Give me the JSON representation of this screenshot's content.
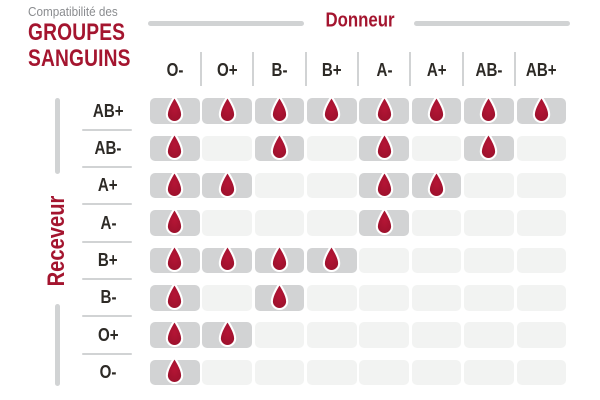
{
  "title": {
    "pre": "Compatibilité des",
    "line1": "GROUPES",
    "line2": "SANGUINS"
  },
  "axis": {
    "donor_label": "Donneur",
    "receiver_label": "Receveur"
  },
  "icons": {
    "compatible_marker": "blood-drop-icon"
  },
  "colors": {
    "brand_red": "#a4152f",
    "drop_red_center": "#b51535",
    "drop_red_edge": "#98102b",
    "subtitle_gray": "#8a8c8f",
    "label_dark": "#2d2a26",
    "line_gray": "#d1d3d4",
    "cell_compatible_bg": "#d2d3d4",
    "cell_incompatible_bg": "#f2f3f2"
  },
  "chart_data": {
    "type": "heatmap",
    "title": "Compatibilité des groupes sanguins",
    "xlabel": "Donneur",
    "ylabel": "Receveur",
    "donors": [
      "O-",
      "O+",
      "B-",
      "B+",
      "A-",
      "A+",
      "AB-",
      "AB+"
    ],
    "receivers": [
      "AB+",
      "AB-",
      "A+",
      "A-",
      "B+",
      "B-",
      "O+",
      "O-"
    ],
    "marker_meaning": "blood drop shown = donor compatible with receiver",
    "matrix": [
      [
        1,
        1,
        1,
        1,
        1,
        1,
        1,
        1
      ],
      [
        1,
        0,
        1,
        0,
        1,
        0,
        1,
        0
      ],
      [
        1,
        1,
        0,
        0,
        1,
        1,
        0,
        0
      ],
      [
        1,
        0,
        0,
        0,
        1,
        0,
        0,
        0
      ],
      [
        1,
        1,
        1,
        1,
        0,
        0,
        0,
        0
      ],
      [
        1,
        0,
        1,
        0,
        0,
        0,
        0,
        0
      ],
      [
        1,
        1,
        0,
        0,
        0,
        0,
        0,
        0
      ],
      [
        1,
        0,
        0,
        0,
        0,
        0,
        0,
        0
      ]
    ],
    "compatible_map": {
      "AB+": [
        "O-",
        "O+",
        "B-",
        "B+",
        "A-",
        "A+",
        "AB-",
        "AB+"
      ],
      "AB-": [
        "O-",
        "B-",
        "A-",
        "AB-"
      ],
      "A+": [
        "O-",
        "O+",
        "A-",
        "A+"
      ],
      "A-": [
        "O-",
        "A-"
      ],
      "B+": [
        "O-",
        "O+",
        "B-",
        "B+"
      ],
      "B-": [
        "O-",
        "B-"
      ],
      "O+": [
        "O-",
        "O+"
      ],
      "O-": [
        "O-"
      ]
    }
  }
}
